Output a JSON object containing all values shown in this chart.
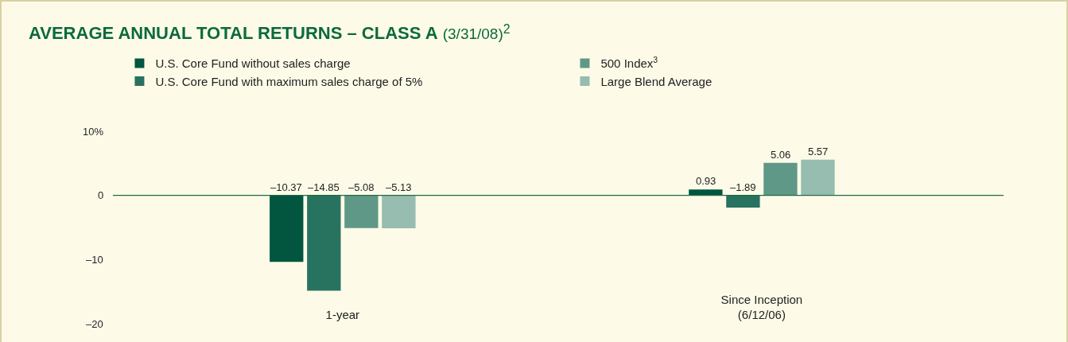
{
  "chart_data": {
    "type": "bar",
    "title": "AVERAGE ANNUAL TOTAL RETURNS – CLASS A",
    "subtitle": "(3/31/08)$^{2}$",
    "categories": [
      "1-year",
      "Since Inception\n(6/12/06)"
    ],
    "series": [
      {
        "name": "U.S. Core Fund without sales charge",
        "color": "#02563f",
        "values": [
          -10.37,
          0.93
        ],
        "value_labels": [
          "–10.37",
          "0.93"
        ]
      },
      {
        "name": "U.S. Core Fund with maximum sales charge of 5%",
        "color": "#28735f",
        "values": [
          -14.85,
          -1.89
        ],
        "value_labels": [
          "–14.85",
          "–1.89"
        ]
      },
      {
        "name": "500 Index$^{3}$",
        "color": "#5f9886",
        "values": [
          -5.08,
          5.06
        ],
        "value_labels": [
          "–5.08",
          "5.06"
        ]
      },
      {
        "name": "Large Blend Average",
        "color": "#97bcb0",
        "values": [
          -5.13,
          5.57
        ],
        "value_labels": [
          "–5.13",
          "5.57"
        ]
      }
    ],
    "ylim": [
      -20,
      10
    ],
    "yticks": [
      {
        "value": 10,
        "label": "10%"
      },
      0,
      {
        "value": -10,
        "label": "–10"
      },
      {
        "value": -20,
        "label": "–20"
      }
    ],
    "ref_lines": [
      {
        "axis": "y",
        "value": 0,
        "color": "#1e6b4a"
      }
    ],
    "grid": false,
    "legend": "top"
  }
}
